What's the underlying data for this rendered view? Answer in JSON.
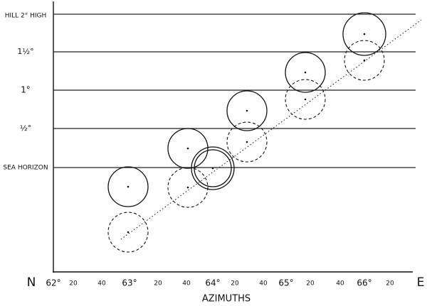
{
  "levels": [
    "HILL 2° HIGH",
    "1½°",
    "1°",
    "½°",
    "SEA HORIZON"
  ],
  "x_axis": {
    "left": "N",
    "right": "E",
    "ticks": [
      "62°",
      "20",
      "40",
      "63°",
      "20",
      "40",
      "64°",
      "20",
      "40",
      "65°",
      "20",
      "40",
      "66°",
      "20"
    ],
    "title": "AZIMUTHS"
  }
}
